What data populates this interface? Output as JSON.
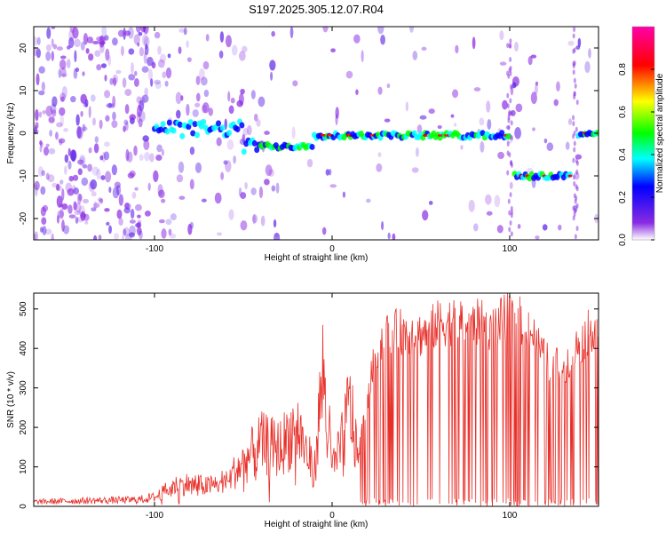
{
  "title": "S197.2025.305.12.07.R04",
  "chart_data": [
    {
      "type": "heatmap",
      "xlabel": "Height of straight line (km)",
      "ylabel": "Frequency (Hz)",
      "xlim": [
        -168,
        150
      ],
      "ylim": [
        -25,
        25
      ],
      "x_ticks": [
        {
          "value": -100,
          "label": "-100"
        },
        {
          "value": 0,
          "label": "0"
        },
        {
          "value": 100,
          "label": "100"
        }
      ],
      "y_ticks": [
        {
          "value": 20,
          "label": "20"
        },
        {
          "value": 10,
          "label": "10"
        },
        {
          "value": 0,
          "label": "0"
        },
        {
          "value": -10,
          "label": "-10"
        },
        {
          "value": -20,
          "label": "-20"
        }
      ],
      "ridge": [
        {
          "x_start": -100,
          "x_end": -50,
          "freq": 1
        },
        {
          "x_start": -50,
          "x_end": -10,
          "freq": -3
        },
        {
          "x_start": -10,
          "x_end": 100,
          "freq": -0.5
        },
        {
          "x_start": 102,
          "x_end": 135,
          "freq": -10
        },
        {
          "x_start": 138,
          "x_end": 150,
          "freq": 0
        }
      ],
      "colorbar": {
        "label": "Normalized spectral amplitude",
        "range": [
          0,
          1
        ],
        "ticks": [
          {
            "value": 0.0,
            "label": "0.0"
          },
          {
            "value": 0.2,
            "label": "0.2"
          },
          {
            "value": 0.4,
            "label": "0.4"
          },
          {
            "value": 0.6,
            "label": "0.6"
          },
          {
            "value": 0.8,
            "label": "0.8"
          }
        ],
        "colors": [
          "#ffffff",
          "#8a2be2",
          "#0000ff",
          "#00ffff",
          "#00ff00",
          "#ffff00",
          "#ff0000",
          "#ff00aa"
        ]
      }
    },
    {
      "type": "line",
      "xlabel": "Height of straight line (km)",
      "ylabel": "SNR (10 * v/v)",
      "xlim": [
        -168,
        150
      ],
      "ylim": [
        0,
        540
      ],
      "x_ticks": [
        {
          "value": -100,
          "label": "-100"
        },
        {
          "value": 0,
          "label": "0"
        },
        {
          "value": 100,
          "label": "100"
        }
      ],
      "y_ticks": [
        {
          "value": 0,
          "label": "0"
        },
        {
          "value": 100,
          "label": "100"
        },
        {
          "value": 200,
          "label": "200"
        },
        {
          "value": 300,
          "label": "300"
        },
        {
          "value": 400,
          "label": "400"
        },
        {
          "value": 500,
          "label": "500"
        }
      ],
      "series": [
        {
          "name": "SNR",
          "color": "#e8302a",
          "x": [
            -168,
            -150,
            -130,
            -110,
            -100,
            -90,
            -80,
            -70,
            -60,
            -50,
            -40,
            -30,
            -20,
            -10,
            -5,
            0,
            5,
            10,
            15,
            20,
            25,
            30,
            40,
            50,
            60,
            70,
            80,
            90,
            100,
            110,
            120,
            130,
            140,
            150
          ],
          "values": [
            15,
            18,
            20,
            22,
            30,
            70,
            80,
            70,
            90,
            150,
            220,
            200,
            280,
            120,
            480,
            140,
            200,
            360,
            150,
            300,
            430,
            470,
            480,
            470,
            500,
            510,
            505,
            490,
            520,
            500,
            400,
            380,
            450,
            510
          ]
        }
      ]
    }
  ]
}
